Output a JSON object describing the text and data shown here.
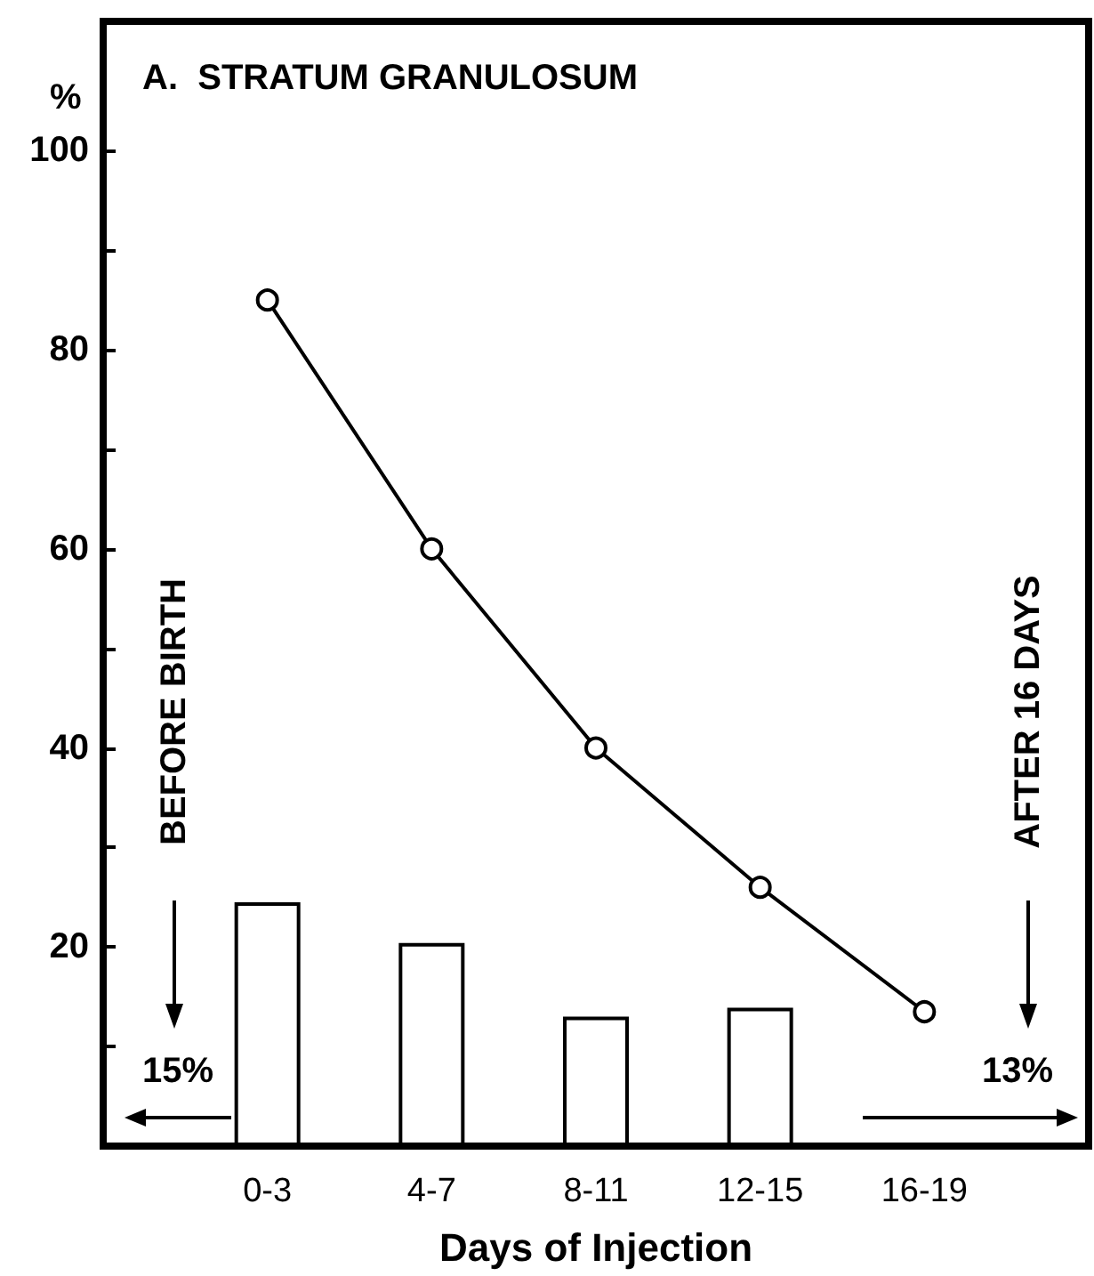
{
  "chart_data": {
    "type": "bar",
    "title": "A.  STRATUM GRANULOSUM",
    "xlabel": "Days of Injection",
    "ylabel": "%",
    "categories": [
      null,
      "0-3",
      "4-7",
      "8-11",
      "12-15",
      "16-19",
      null
    ],
    "series": [
      {
        "color": "#ffffff",
        "values": [
          null,
          24.5,
          20.4,
          13,
          13.9,
          null,
          null
        ]
      },
      {
        "type": "line",
        "color": "#000000",
        "values": [
          null,
          85,
          60,
          40,
          26,
          13.5,
          null
        ]
      }
    ],
    "ylim": [
      0,
      113
    ],
    "yticks": [
      {
        "value": 10,
        "label": null
      },
      20,
      {
        "value": 30,
        "label": null
      },
      40,
      {
        "value": 50,
        "label": null
      },
      60,
      {
        "value": 70,
        "label": null
      },
      80,
      {
        "value": 90,
        "label": null
      },
      100
    ],
    "annotations": [
      "BEFORE BIRTH",
      "15%",
      "AFTER 16 DAYS",
      "13%"
    ],
    "marker": "circle",
    "line_style": "solid",
    "grid": false
  }
}
